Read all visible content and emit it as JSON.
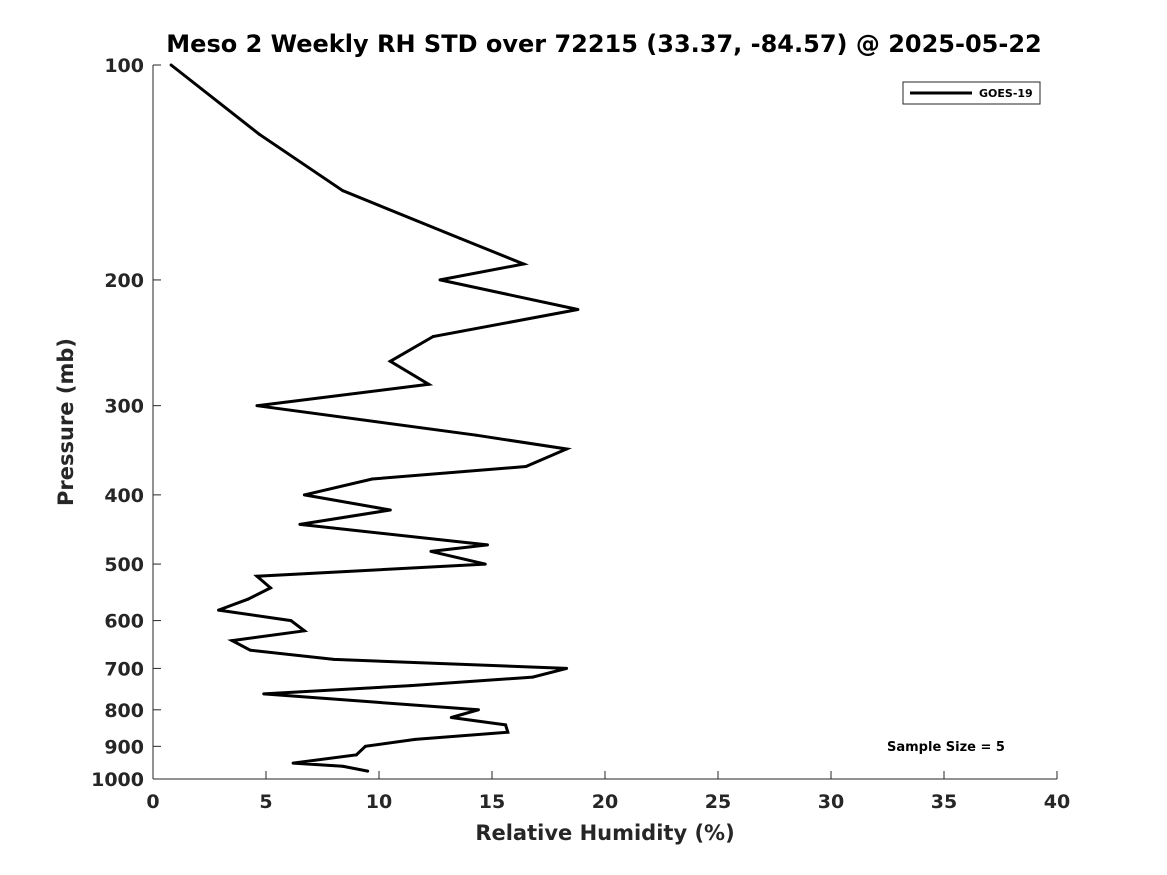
{
  "chart_data": {
    "type": "line",
    "title": "Meso 2 Weekly RH STD over 72215 (33.37, -84.57) @ 2025-05-22",
    "xlabel": "Relative Humidity (%)",
    "ylabel": "Pressure (mb)",
    "xlim": [
      0,
      40
    ],
    "ylim": [
      100,
      1000
    ],
    "y_scale": "log",
    "y_reversed": true,
    "grid": false,
    "legend_position": "top-right",
    "x_ticks": [
      0,
      5,
      10,
      15,
      20,
      25,
      30,
      35,
      40
    ],
    "x_tick_labels": [
      "0",
      "5",
      "10",
      "15",
      "20",
      "25",
      "30",
      "35",
      "40"
    ],
    "y_ticks": [
      100,
      200,
      300,
      400,
      500,
      600,
      700,
      800,
      900,
      1000
    ],
    "y_tick_labels": [
      "100",
      "200",
      "300",
      "400",
      "500",
      "600",
      "700",
      "800",
      "900",
      "1000"
    ],
    "annotation": "Sample Size = 5",
    "series": [
      {
        "name": "GOES-19",
        "color": "#000000",
        "points": [
          [
            0.8,
            100
          ],
          [
            4.7,
            125
          ],
          [
            8.4,
            150
          ],
          [
            13.6,
            175
          ],
          [
            16.4,
            190
          ],
          [
            12.7,
            200
          ],
          [
            18.8,
            220
          ],
          [
            12.4,
            240
          ],
          [
            10.5,
            260
          ],
          [
            12.2,
            280
          ],
          [
            4.6,
            300
          ],
          [
            14.3,
            330
          ],
          [
            18.3,
            345
          ],
          [
            16.5,
            365
          ],
          [
            9.7,
            380
          ],
          [
            6.7,
            400
          ],
          [
            10.5,
            420
          ],
          [
            6.5,
            440
          ],
          [
            14.8,
            470
          ],
          [
            12.3,
            480
          ],
          [
            14.7,
            500
          ],
          [
            4.6,
            520
          ],
          [
            5.2,
            540
          ],
          [
            4.2,
            560
          ],
          [
            2.9,
            580
          ],
          [
            6.1,
            600
          ],
          [
            6.7,
            620
          ],
          [
            3.5,
            640
          ],
          [
            4.3,
            660
          ],
          [
            8.0,
            680
          ],
          [
            18.3,
            700
          ],
          [
            16.8,
            720
          ],
          [
            11.4,
            740
          ],
          [
            4.9,
            760
          ],
          [
            14.4,
            800
          ],
          [
            13.2,
            820
          ],
          [
            15.6,
            840
          ],
          [
            15.7,
            860
          ],
          [
            11.6,
            880
          ],
          [
            9.4,
            900
          ],
          [
            9.0,
            925
          ],
          [
            6.2,
            950
          ],
          [
            8.4,
            960
          ],
          [
            9.5,
            975
          ]
        ]
      }
    ]
  }
}
